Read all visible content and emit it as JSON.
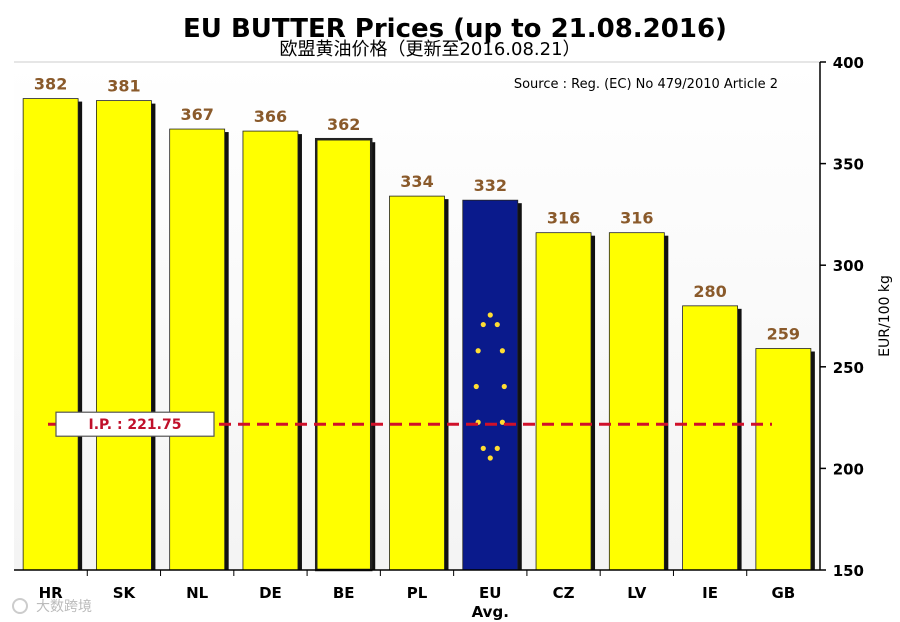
{
  "chart_data": {
    "type": "bar",
    "title": "EU BUTTER Prices  (up to 21.08.2016)",
    "subtitle": "欧盟黄油价格（更新至2016.08.21）",
    "source": "Source : Reg. (EC) No 479/2010 Article 2",
    "ylabel": "EUR/100 kg",
    "ylim": [
      150,
      400
    ],
    "yticks": [
      150,
      200,
      250,
      300,
      350,
      400
    ],
    "categories": [
      "HR",
      "SK",
      "NL",
      "DE",
      "BE",
      "PL",
      "EU",
      "CZ",
      "LV",
      "IE",
      "GB"
    ],
    "category_sublabels": [
      "",
      "",
      "",
      "",
      "",
      "",
      "Avg.",
      "",
      "",
      "",
      ""
    ],
    "values": [
      382,
      381,
      367,
      366,
      362,
      334,
      332,
      316,
      316,
      280,
      259
    ],
    "value_labels": [
      "382",
      "381",
      "367",
      "366",
      "362",
      "334",
      "332",
      "316",
      "316",
      "280",
      "259"
    ],
    "highlight_category": "EU",
    "reference_line": {
      "label": "I.P. : 221.75",
      "value": 221.75,
      "color": "#d0102a"
    },
    "bar_color": "#ffff00",
    "highlight_color": "#0a1a8c",
    "value_label_color": "#8a5a2b",
    "grid": false,
    "legend": "none"
  },
  "watermark": "大数跨境"
}
